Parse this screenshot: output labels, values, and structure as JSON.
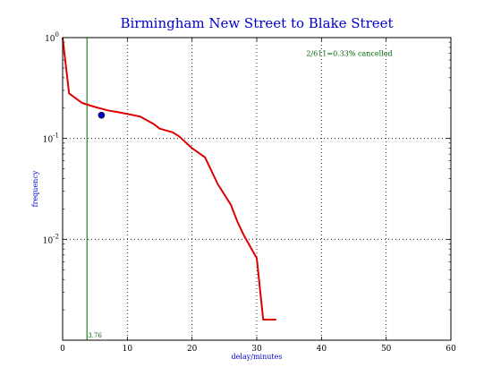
{
  "chart_data": {
    "type": "line",
    "title": "Birmingham New Street to Blake Street",
    "xlabel": "delay/minutes",
    "ylabel": "frequency",
    "xlim": [
      0,
      60
    ],
    "ylim": [
      0.001,
      1
    ],
    "yscale": "log",
    "grid": true,
    "x_ticks": [
      "0",
      "10",
      "20",
      "30",
      "40",
      "50",
      "60"
    ],
    "y_ticks": [
      {
        "base": "10",
        "exp": "-2",
        "value": 0.01
      },
      {
        "base": "10",
        "exp": "-1",
        "value": 0.1
      },
      {
        "base": "10",
        "exp": "0",
        "value": 1
      }
    ],
    "series": [
      {
        "color": "#dd0000",
        "x": [
          0,
          1,
          3,
          5,
          7,
          9,
          12,
          14,
          15,
          17,
          18,
          20,
          22,
          24,
          26,
          27,
          28,
          30,
          31,
          33
        ],
        "y": [
          1.0,
          0.28,
          0.225,
          0.205,
          0.19,
          0.18,
          0.165,
          0.14,
          0.125,
          0.115,
          0.105,
          0.08,
          0.065,
          0.035,
          0.022,
          0.015,
          0.011,
          0.0065,
          0.0016,
          0.0016
        ]
      }
    ],
    "points": [
      {
        "x": 6,
        "y": 0.17,
        "color": "#0000cc"
      }
    ],
    "vline": {
      "x": 3.76,
      "label": "3.76",
      "color": "#006600"
    },
    "annotation": {
      "text": "2/611=0.33% cancelled",
      "x": 40,
      "y": 0.7,
      "color": "#006600"
    }
  }
}
